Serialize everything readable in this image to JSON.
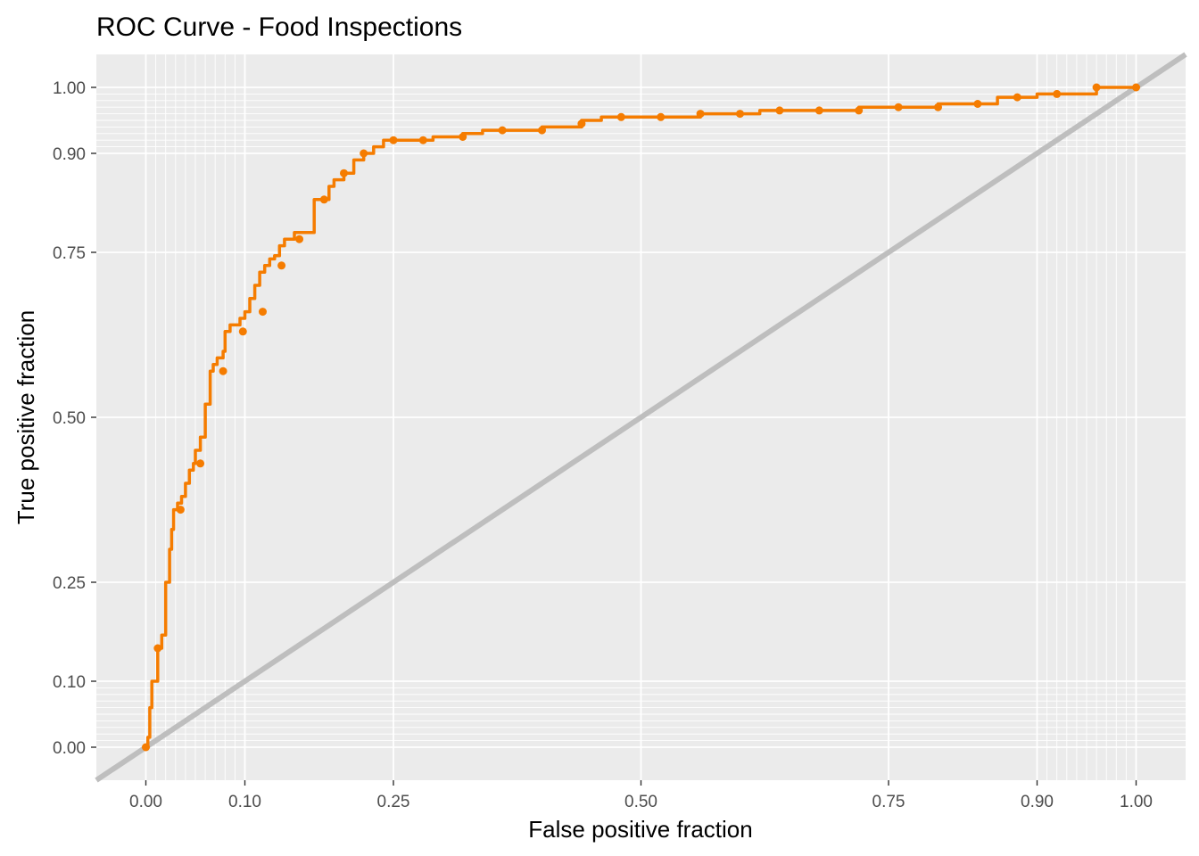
{
  "chart_data": {
    "type": "line",
    "title": "ROC Curve - Food Inspections",
    "xlabel": "False positive fraction",
    "ylabel": "True positive fraction",
    "xlim": [
      -0.05,
      1.05
    ],
    "ylim": [
      -0.05,
      1.05
    ],
    "x_ticks": [
      0.0,
      0.1,
      0.25,
      0.5,
      0.75,
      0.9,
      1.0
    ],
    "x_tick_labels": [
      "0.00",
      "0.10",
      "0.25",
      "0.50",
      "0.75",
      "0.90",
      "1.00"
    ],
    "y_ticks": [
      0.0,
      0.1,
      0.25,
      0.5,
      0.75,
      0.9,
      1.0
    ],
    "y_tick_labels": [
      "0.00",
      "0.10",
      "0.25",
      "0.50",
      "0.75",
      "0.90",
      "1.00"
    ],
    "minor_grid": [
      0.01,
      0.02,
      0.03,
      0.04,
      0.05,
      0.06,
      0.07,
      0.08,
      0.09,
      0.91,
      0.92,
      0.93,
      0.94,
      0.95,
      0.96,
      0.97,
      0.98,
      0.99
    ],
    "grid": true,
    "legend": "none",
    "colors": {
      "panel": "#ebebeb",
      "grid": "#ffffff",
      "curve": "#f57c00",
      "reference": "#bebebe"
    },
    "reference_line": {
      "x": [
        -0.05,
        1.05
      ],
      "y": [
        -0.05,
        1.05
      ]
    },
    "series": [
      {
        "x": [
          0.0,
          0.002,
          0.004,
          0.006,
          0.008,
          0.012,
          0.016,
          0.02,
          0.024,
          0.026,
          0.028,
          0.032,
          0.036,
          0.04,
          0.044,
          0.048,
          0.05,
          0.055,
          0.06,
          0.065,
          0.068,
          0.072,
          0.076,
          0.078,
          0.08,
          0.085,
          0.09,
          0.095,
          0.1,
          0.105,
          0.11,
          0.115,
          0.12,
          0.125,
          0.13,
          0.135,
          0.14,
          0.145,
          0.15,
          0.16,
          0.17,
          0.175,
          0.185,
          0.19,
          0.2,
          0.21,
          0.22,
          0.23,
          0.24,
          0.25,
          0.27,
          0.29,
          0.32,
          0.34,
          0.36,
          0.38,
          0.4,
          0.44,
          0.46,
          0.48,
          0.5,
          0.52,
          0.56,
          0.58,
          0.6,
          0.62,
          0.64,
          0.66,
          0.68,
          0.7,
          0.72,
          0.74,
          0.76,
          0.78,
          0.8,
          0.82,
          0.84,
          0.86,
          0.88,
          0.9,
          0.92,
          0.94,
          0.96,
          0.98,
          1.0
        ],
        "y": [
          0.0,
          0.015,
          0.06,
          0.1,
          0.1,
          0.15,
          0.17,
          0.25,
          0.3,
          0.33,
          0.36,
          0.37,
          0.38,
          0.4,
          0.42,
          0.43,
          0.45,
          0.47,
          0.52,
          0.57,
          0.58,
          0.59,
          0.59,
          0.6,
          0.63,
          0.64,
          0.64,
          0.65,
          0.66,
          0.68,
          0.7,
          0.72,
          0.73,
          0.74,
          0.745,
          0.76,
          0.77,
          0.77,
          0.78,
          0.78,
          0.83,
          0.83,
          0.85,
          0.86,
          0.87,
          0.89,
          0.9,
          0.91,
          0.92,
          0.92,
          0.92,
          0.925,
          0.93,
          0.935,
          0.935,
          0.935,
          0.94,
          0.95,
          0.955,
          0.955,
          0.955,
          0.955,
          0.96,
          0.96,
          0.96,
          0.965,
          0.965,
          0.965,
          0.965,
          0.965,
          0.97,
          0.97,
          0.97,
          0.97,
          0.975,
          0.975,
          0.975,
          0.985,
          0.985,
          0.99,
          0.99,
          0.99,
          1.0,
          1.0,
          1.0
        ]
      }
    ],
    "points": {
      "x": [
        0.0,
        0.012,
        0.035,
        0.055,
        0.078,
        0.098,
        0.118,
        0.137,
        0.155,
        0.18,
        0.2,
        0.22,
        0.25,
        0.28,
        0.32,
        0.36,
        0.4,
        0.44,
        0.48,
        0.52,
        0.56,
        0.6,
        0.64,
        0.68,
        0.72,
        0.76,
        0.8,
        0.84,
        0.88,
        0.92,
        0.96,
        1.0
      ],
      "y": [
        0.0,
        0.15,
        0.36,
        0.43,
        0.57,
        0.63,
        0.66,
        0.73,
        0.77,
        0.83,
        0.87,
        0.9,
        0.92,
        0.92,
        0.925,
        0.935,
        0.935,
        0.945,
        0.955,
        0.955,
        0.96,
        0.96,
        0.965,
        0.965,
        0.965,
        0.97,
        0.97,
        0.975,
        0.985,
        0.99,
        1.0,
        1.0
      ]
    }
  }
}
